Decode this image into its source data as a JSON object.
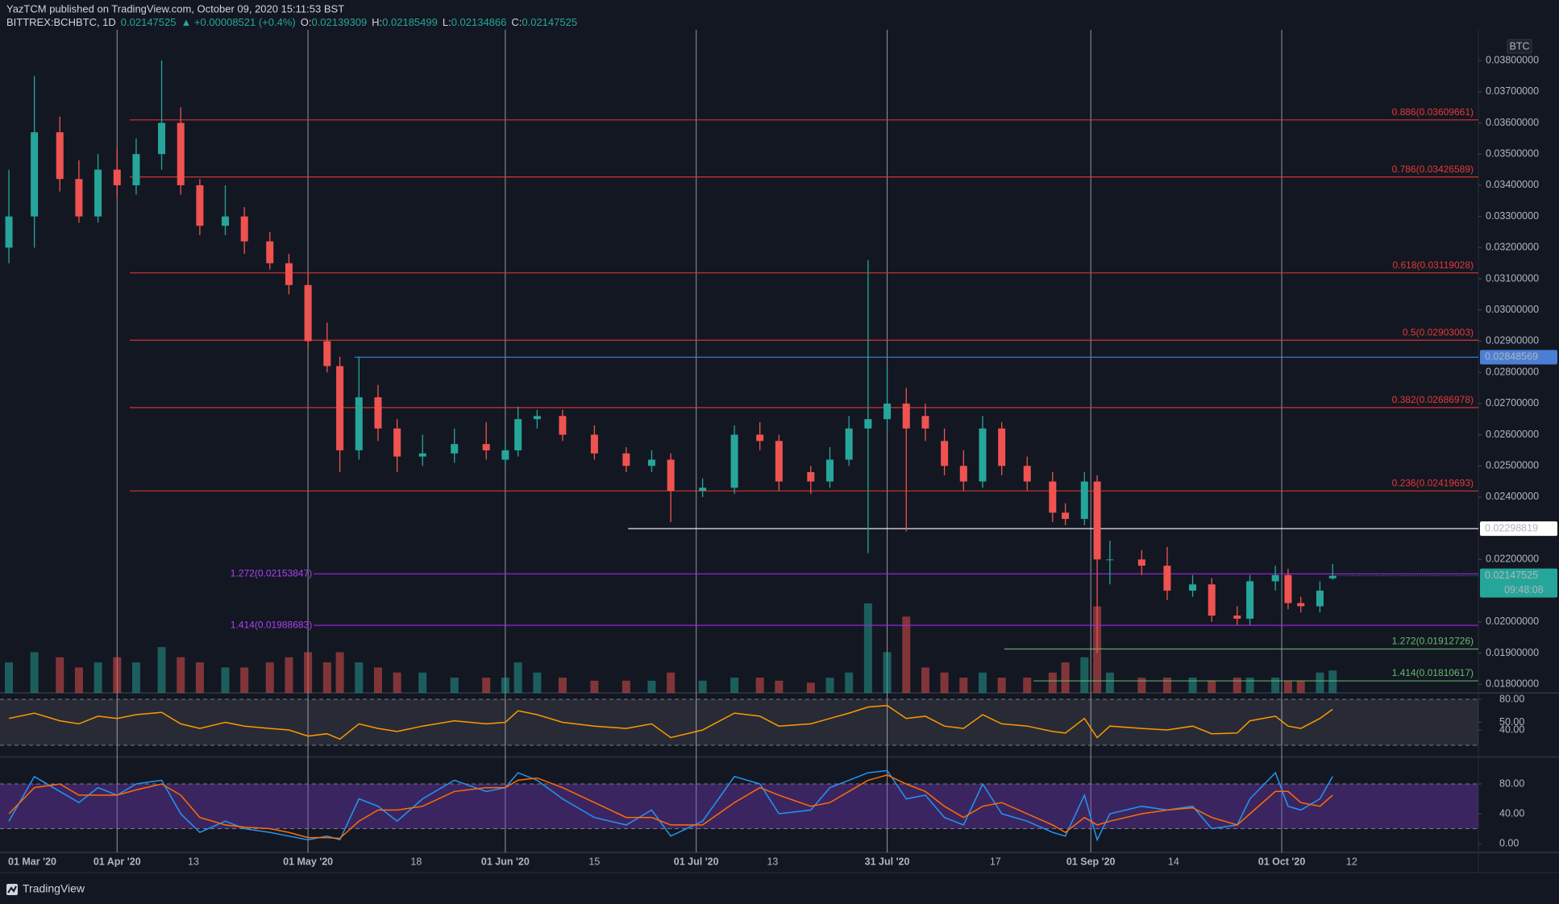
{
  "header": {
    "published": "YazTCM published on TradingView.com, October 09, 2020 15:11:53 BST",
    "symbol": "BITTREX:BCHBTC, 1D",
    "last": "0.02147525",
    "change": "▲ +0.00008521 (+0.4%)",
    "ohlc": [
      {
        "label": "O:",
        "value": "0.02139309"
      },
      {
        "label": "H:",
        "value": "0.02185499"
      },
      {
        "label": "L:",
        "value": "0.02134866"
      },
      {
        "label": "C:",
        "value": "0.02147525"
      }
    ]
  },
  "footer": {
    "brand": "TradingView"
  },
  "chart_data": [
    {
      "type": "candlestick",
      "currency": "BTC",
      "up_color": "#26a69a",
      "down_color": "#ef5350",
      "xlim": [
        12.6,
        244.9
      ],
      "ylim": [
        0.01772,
        0.03883
      ],
      "vlim": [
        0,
        95
      ],
      "xticks": [
        {
          "value": 0,
          "label": "01 Mar '20",
          "bold": true
        },
        {
          "value": 31,
          "label": "01 Apr '20",
          "bold": true
        },
        {
          "value": 43,
          "label": "13"
        },
        {
          "value": 61,
          "label": "01 May '20",
          "bold": true
        },
        {
          "value": 78,
          "label": "18"
        },
        {
          "value": 92,
          "label": "01 Jun '20",
          "bold": true
        },
        {
          "value": 106,
          "label": "15"
        },
        {
          "value": 122,
          "label": "01 Jul '20",
          "bold": true
        },
        {
          "value": 134,
          "label": "13"
        },
        {
          "value": 152,
          "label": "31 Jul '20",
          "bold": true
        },
        {
          "value": 169,
          "label": "17"
        },
        {
          "value": 184,
          "label": "01 Sep '20",
          "bold": true
        },
        {
          "value": 197,
          "label": "14"
        },
        {
          "value": 214,
          "label": "01 Oct '20",
          "bold": true
        },
        {
          "value": 225,
          "label": "12"
        }
      ],
      "yticks": [
        {
          "value": 0.038,
          "label": "0.03800000"
        },
        {
          "value": 0.037,
          "label": "0.03700000"
        },
        {
          "value": 0.036,
          "label": "0.03600000"
        },
        {
          "value": 0.035,
          "label": "0.03500000"
        },
        {
          "value": 0.034,
          "label": "0.03400000"
        },
        {
          "value": 0.033,
          "label": "0.03300000"
        },
        {
          "value": 0.032,
          "label": "0.03200000"
        },
        {
          "value": 0.031,
          "label": "0.03100000"
        },
        {
          "value": 0.03,
          "label": "0.03000000"
        },
        {
          "value": 0.029,
          "label": "0.02900000"
        },
        {
          "value": 0.028,
          "label": "0.02800000"
        },
        {
          "value": 0.027,
          "label": "0.02700000"
        },
        {
          "value": 0.026,
          "label": "0.02600000"
        },
        {
          "value": 0.025,
          "label": "0.02500000"
        },
        {
          "value": 0.024,
          "label": "0.02400000"
        },
        {
          "value": 0.022,
          "label": "0.02200000"
        },
        {
          "value": 0.02,
          "label": "0.02000000"
        },
        {
          "value": 0.019,
          "label": "0.01900000"
        },
        {
          "value": 0.018,
          "label": "0.01800000"
        }
      ],
      "levels": [
        {
          "label": "0.886(0.03609661)",
          "value": 0.03609661,
          "color": "#e53935",
          "from": 33,
          "label_side": "right"
        },
        {
          "label": "0.786(0.03426589)",
          "value": 0.03426589,
          "color": "#e53935",
          "from": 33,
          "label_side": "right"
        },
        {
          "label": "0.618(0.03119028)",
          "value": 0.03119028,
          "color": "#e53935",
          "from": 33,
          "label_side": "right"
        },
        {
          "label": "0.5(0.02903003)",
          "value": 0.02903003,
          "color": "#e53935",
          "from": 33,
          "label_side": "right"
        },
        {
          "label": "0.382(0.02686978)",
          "value": 0.02686978,
          "color": "#e53935",
          "from": 33,
          "label_side": "right"
        },
        {
          "label": "0.236(0.02419693)",
          "value": 0.02419693,
          "color": "#e53935",
          "from": 33,
          "label_side": "right"
        },
        {
          "axis_label": "0.02848569",
          "value": 0.02848569,
          "color": "#4a7fd4",
          "from": 68.3
        },
        {
          "axis_label": "0.02298819",
          "value": 0.02298819,
          "color": "#ffffff",
          "from": 111.3
        },
        {
          "label": "1.272(0.02153847)",
          "value": 0.02153847,
          "color": "#a326e8",
          "from": 61.9,
          "label_side": "left"
        },
        {
          "label": "1.414(0.01988683)",
          "value": 0.01988683,
          "color": "#a326e8",
          "from": 61.9,
          "label_side": "left"
        },
        {
          "label": "1.272(0.01912726)",
          "value": 0.01912726,
          "color": "#66bb6a",
          "from": 170.4,
          "label_side": "right"
        },
        {
          "label": "1.414(0.01810617)",
          "value": 0.01810617,
          "color": "#66bb6a",
          "from": 175,
          "label_side": "right"
        }
      ],
      "last_price": {
        "value": 0.02147525,
        "label": "0.02147525",
        "countdown": "09:48:08",
        "color": "#26a69a"
      },
      "x": [
        14,
        18,
        22,
        25,
        28,
        31,
        34,
        38,
        41,
        44,
        48,
        51,
        55,
        58,
        61,
        64,
        66,
        69,
        72,
        75,
        79,
        84,
        89,
        92,
        94,
        97,
        101,
        106,
        111,
        115,
        118,
        123,
        128,
        132,
        135,
        140,
        143,
        146,
        149,
        152,
        155,
        158,
        161,
        164,
        167,
        170,
        174,
        178,
        180,
        183,
        185,
        187,
        192,
        196,
        200,
        203,
        207,
        209,
        213,
        215,
        217,
        220,
        222
      ],
      "open": [
        0.032,
        0.033,
        0.0357,
        0.0342,
        0.033,
        0.0345,
        0.034,
        0.035,
        0.036,
        0.034,
        0.0327,
        0.033,
        0.0322,
        0.0315,
        0.0308,
        0.029,
        0.0282,
        0.0255,
        0.0272,
        0.0262,
        0.0253,
        0.0254,
        0.0257,
        0.0252,
        0.0255,
        0.0265,
        0.0266,
        0.026,
        0.0254,
        0.025,
        0.0252,
        0.0242,
        0.0243,
        0.026,
        0.0258,
        0.0248,
        0.0245,
        0.0252,
        0.0262,
        0.0265,
        0.027,
        0.0266,
        0.0258,
        0.025,
        0.0245,
        0.0262,
        0.025,
        0.0245,
        0.0235,
        0.0233,
        0.0245,
        0.022,
        0.022,
        0.0218,
        0.021,
        0.0212,
        0.0202,
        0.0201,
        0.0213,
        0.0215,
        0.0206,
        0.0205,
        0.02139309
      ],
      "high": [
        0.0345,
        0.0375,
        0.0362,
        0.0348,
        0.035,
        0.0352,
        0.0355,
        0.038,
        0.0365,
        0.0342,
        0.034,
        0.0333,
        0.0325,
        0.0318,
        0.0312,
        0.0296,
        0.0285,
        0.0285,
        0.0276,
        0.0265,
        0.026,
        0.0262,
        0.0264,
        0.0258,
        0.0269,
        0.0268,
        0.0268,
        0.0263,
        0.0256,
        0.0255,
        0.0254,
        0.0246,
        0.0263,
        0.0264,
        0.026,
        0.025,
        0.0256,
        0.0266,
        0.0316,
        0.0282,
        0.0275,
        0.027,
        0.0262,
        0.0255,
        0.0266,
        0.0264,
        0.0253,
        0.0248,
        0.0238,
        0.0248,
        0.0247,
        0.0226,
        0.0223,
        0.0224,
        0.0215,
        0.0214,
        0.0205,
        0.0215,
        0.0218,
        0.0217,
        0.0208,
        0.0213,
        0.02185499
      ],
      "low": [
        0.0315,
        0.032,
        0.0338,
        0.0328,
        0.0328,
        0.0336,
        0.0337,
        0.0345,
        0.0337,
        0.0324,
        0.0324,
        0.0318,
        0.0313,
        0.0305,
        0.0288,
        0.028,
        0.0248,
        0.0252,
        0.0258,
        0.0248,
        0.025,
        0.0251,
        0.0252,
        0.025,
        0.0253,
        0.0262,
        0.0258,
        0.0252,
        0.0248,
        0.0248,
        0.0232,
        0.024,
        0.0241,
        0.0255,
        0.0242,
        0.0241,
        0.0243,
        0.025,
        0.0222,
        0.0262,
        0.0229,
        0.0258,
        0.0247,
        0.0242,
        0.0243,
        0.0247,
        0.0242,
        0.0232,
        0.0231,
        0.0231,
        0.019,
        0.0212,
        0.0215,
        0.0207,
        0.0208,
        0.02,
        0.0199,
        0.0199,
        0.021,
        0.0204,
        0.0203,
        0.0203,
        0.02134866
      ],
      "close": [
        0.033,
        0.0357,
        0.0342,
        0.033,
        0.0345,
        0.034,
        0.035,
        0.036,
        0.034,
        0.0327,
        0.033,
        0.0322,
        0.0315,
        0.0308,
        0.029,
        0.0282,
        0.0255,
        0.0272,
        0.0262,
        0.0253,
        0.0254,
        0.0257,
        0.0255,
        0.0255,
        0.0265,
        0.0266,
        0.026,
        0.0254,
        0.025,
        0.0252,
        0.0242,
        0.0243,
        0.026,
        0.0258,
        0.0245,
        0.0245,
        0.0252,
        0.0262,
        0.0265,
        0.027,
        0.0262,
        0.0262,
        0.025,
        0.0245,
        0.0262,
        0.025,
        0.0245,
        0.0235,
        0.0233,
        0.0245,
        0.022,
        0.022,
        0.0218,
        0.021,
        0.0212,
        0.0202,
        0.0201,
        0.0213,
        0.0215,
        0.0206,
        0.0205,
        0.021,
        0.02147525
      ],
      "volume": [
        30,
        40,
        35,
        25,
        30,
        35,
        30,
        45,
        35,
        30,
        25,
        25,
        30,
        35,
        40,
        30,
        40,
        30,
        25,
        20,
        20,
        15,
        15,
        15,
        30,
        20,
        15,
        12,
        12,
        12,
        20,
        12,
        15,
        15,
        12,
        10,
        15,
        20,
        88,
        40,
        75,
        25,
        20,
        15,
        20,
        15,
        15,
        20,
        30,
        35,
        85,
        20,
        15,
        15,
        15,
        12,
        15,
        15,
        15,
        12,
        12,
        20,
        22
      ]
    },
    {
      "type": "line",
      "color": "#ff9800",
      "ylim": [
        6.3,
        88.4
      ],
      "yticks": [
        {
          "value": 80,
          "label": "80.00"
        },
        {
          "value": 50,
          "label": "50.00"
        },
        {
          "value": 40,
          "label": "40.00"
        }
      ],
      "band": [
        20,
        80
      ],
      "values": [
        55,
        62,
        52,
        48,
        58,
        55,
        60,
        63,
        48,
        42,
        50,
        45,
        42,
        40,
        32,
        35,
        28,
        48,
        42,
        38,
        45,
        52,
        48,
        50,
        65,
        60,
        50,
        45,
        42,
        48,
        30,
        40,
        62,
        58,
        45,
        48,
        55,
        62,
        70,
        72,
        55,
        58,
        45,
        42,
        60,
        48,
        45,
        38,
        36,
        55,
        30,
        45,
        42,
        40,
        45,
        35,
        36,
        52,
        58,
        45,
        42,
        55,
        67
      ]
    },
    {
      "type": "line",
      "ylim": [
        -11.9,
        114.6
      ],
      "yticks": [
        {
          "value": 80,
          "label": "80.00"
        },
        {
          "value": 40,
          "label": "40.00"
        },
        {
          "value": 0,
          "label": "0.00"
        }
      ],
      "band": [
        20,
        80
      ],
      "band_color": "rgba(126,60,200,0.38)",
      "series": [
        {
          "color": "#2196f3",
          "values": [
            30,
            90,
            70,
            55,
            75,
            65,
            80,
            85,
            40,
            15,
            30,
            20,
            15,
            10,
            5,
            10,
            5,
            60,
            50,
            30,
            60,
            85,
            70,
            75,
            95,
            85,
            60,
            35,
            25,
            45,
            10,
            30,
            90,
            80,
            40,
            45,
            75,
            85,
            95,
            98,
            60,
            65,
            35,
            25,
            80,
            40,
            30,
            15,
            10,
            65,
            5,
            40,
            50,
            45,
            50,
            20,
            25,
            60,
            95,
            50,
            45,
            60,
            90
          ]
        },
        {
          "color": "#ff6d00",
          "values": [
            40,
            75,
            80,
            65,
            65,
            65,
            72,
            80,
            65,
            35,
            25,
            22,
            20,
            15,
            8,
            8,
            7,
            30,
            45,
            45,
            50,
            70,
            75,
            75,
            85,
            88,
            75,
            55,
            35,
            35,
            25,
            25,
            55,
            75,
            65,
            50,
            55,
            70,
            85,
            92,
            80,
            70,
            50,
            35,
            50,
            55,
            40,
            25,
            15,
            35,
            25,
            30,
            40,
            45,
            48,
            35,
            25,
            40,
            70,
            70,
            55,
            50,
            65
          ]
        }
      ]
    }
  ]
}
